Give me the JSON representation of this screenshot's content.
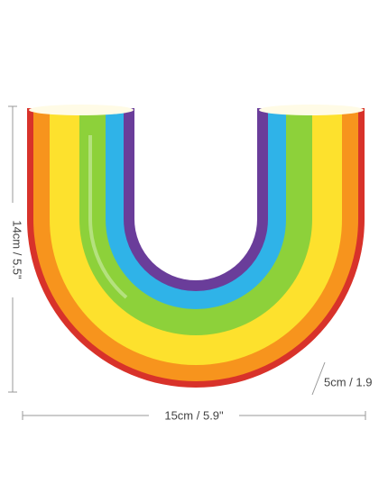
{
  "dimensions": {
    "height": "14cm / 5.5\"",
    "depth": "5cm / 1.9",
    "width": "15cm / 5.9\""
  }
}
